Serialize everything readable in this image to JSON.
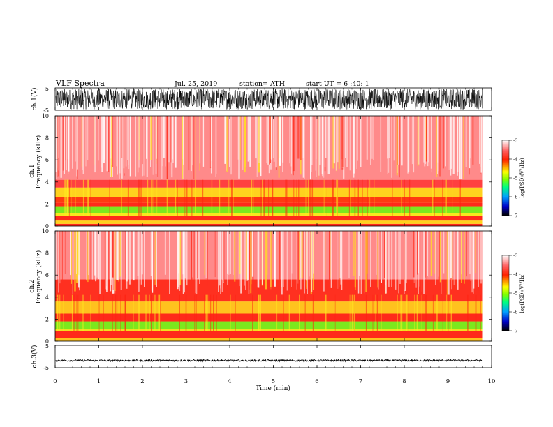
{
  "header": {
    "title": "VLF  Spectra",
    "date": "Jul.  25,  2019",
    "station": "station= ATH",
    "start": "start  UT  =    6  :40: 1"
  },
  "chart_data": [
    {
      "type": "line",
      "panel": "ch1-waveform",
      "ylabel": "ch.1(V)",
      "ylim": [
        -5,
        5
      ],
      "yticks": [
        "5",
        "-5"
      ],
      "xlim": [
        0,
        10
      ],
      "color": "#000000",
      "data_extent_min": 9.8,
      "amplitude_range_v": [
        -4.6,
        4.6
      ]
    },
    {
      "type": "heatmap",
      "panel": "ch1-spectrogram",
      "ylabel": "ch.1\nFrequency  (kHz)",
      "ylim": [
        0,
        10
      ],
      "yticks": [
        "0",
        "2",
        "4",
        "6",
        "8",
        "10"
      ],
      "xlim": [
        0,
        10
      ],
      "data_extent_min": 9.8,
      "colorbar": {
        "label": "log(PSD)(V²/Hz)",
        "range": [
          -7,
          -3
        ],
        "ticks": [
          "-3",
          "-4",
          "-5",
          "-6",
          "-7"
        ],
        "colors": [
          "#000000",
          "#0000c8",
          "#00a0ff",
          "#00ff80",
          "#80ff00",
          "#ffff00",
          "#ff2000",
          "#ff6060",
          "#ffffff"
        ]
      },
      "bands_khz": [
        {
          "from": 0.0,
          "to": 0.2,
          "log_psd": -4.0,
          "color": "#ff2a1a"
        },
        {
          "from": 0.2,
          "to": 0.5,
          "log_psd": -4.5,
          "color": "#ffd21e"
        },
        {
          "from": 0.5,
          "to": 0.9,
          "log_psd": -4.0,
          "color": "#ff2a1a"
        },
        {
          "from": 0.9,
          "to": 1.2,
          "log_psd": -4.6,
          "color": "#f8e81e"
        },
        {
          "from": 1.2,
          "to": 1.8,
          "log_psd": -5.0,
          "color": "#7ce81e"
        },
        {
          "from": 1.8,
          "to": 2.1,
          "log_psd": -4.0,
          "color": "#ff2a1a"
        },
        {
          "from": 2.1,
          "to": 2.6,
          "log_psd": -4.2,
          "color": "#ff3a10"
        },
        {
          "from": 2.6,
          "to": 3.5,
          "log_psd": -4.5,
          "color": "#ffd21e"
        },
        {
          "from": 3.5,
          "to": 4.2,
          "log_psd": -3.8,
          "color": "#ff4040"
        },
        {
          "from": 4.2,
          "to": 10.0,
          "log_psd": -3.5,
          "color": "#ff8a8a"
        }
      ]
    },
    {
      "type": "heatmap",
      "panel": "ch2-spectrogram",
      "ylabel": "ch.2\nFrequency  (kHz)",
      "ylim": [
        0,
        10
      ],
      "yticks": [
        "0",
        "2",
        "4",
        "6",
        "8",
        "10"
      ],
      "xlim": [
        0,
        10
      ],
      "data_extent_min": 9.8,
      "colorbar": {
        "label": "log(PSD)(V²/Hz)",
        "range": [
          -7,
          -3
        ],
        "ticks": [
          "-3",
          "-4",
          "-5",
          "-6",
          "-7"
        ],
        "colors": [
          "#000000",
          "#0000c8",
          "#00a0ff",
          "#00ff80",
          "#80ff00",
          "#ffff00",
          "#ff2000",
          "#ff6060",
          "#ffffff"
        ]
      },
      "bands_khz": [
        {
          "from": 0.0,
          "to": 0.3,
          "log_psd": -4.5,
          "color": "#ffc21e"
        },
        {
          "from": 0.3,
          "to": 0.9,
          "log_psd": -4.0,
          "color": "#ff2a1a"
        },
        {
          "from": 0.9,
          "to": 1.1,
          "log_psd": -4.6,
          "color": "#f0e01e"
        },
        {
          "from": 1.1,
          "to": 1.8,
          "log_psd": -5.0,
          "color": "#7ce81e"
        },
        {
          "from": 1.8,
          "to": 2.5,
          "log_psd": -4.0,
          "color": "#ff2a1a"
        },
        {
          "from": 2.5,
          "to": 3.6,
          "log_psd": -4.4,
          "color": "#ffc21e"
        },
        {
          "from": 3.6,
          "to": 5.6,
          "log_psd": -3.9,
          "color": "#ff3020"
        },
        {
          "from": 5.6,
          "to": 10.0,
          "log_psd": -3.5,
          "color": "#ff8a8a"
        }
      ]
    },
    {
      "type": "line",
      "panel": "ch3-waveform",
      "ylabel": "ch.3(V)",
      "ylim": [
        -5,
        5
      ],
      "yticks": [
        "5",
        "-5"
      ],
      "xlim": [
        0,
        10
      ],
      "xticks": [
        "0",
        "1",
        "2",
        "3",
        "4",
        "5",
        "6",
        "7",
        "8",
        "9",
        "10"
      ],
      "xlabel": "Time  (min)",
      "color": "#000000",
      "data_extent_min": 9.8,
      "dc_level_v": -1.8,
      "amplitude_range_v": [
        -2.2,
        -1.4
      ]
    }
  ]
}
